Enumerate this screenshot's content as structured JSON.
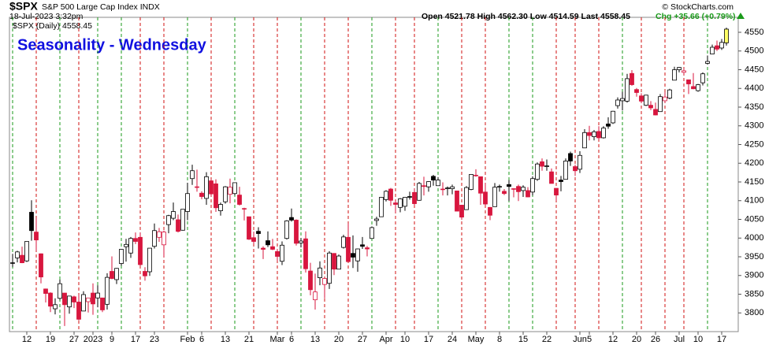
{
  "header": {
    "symbol": "$SPX",
    "name": "S&P 500 Large Cap Index INDX",
    "date": "18-Jul-2023 3:32pm",
    "legend": "$SPX (Daily) 4558.45",
    "quote": "Open 4521.78  High 4562.30  Low 4514.59  Last 4558.45",
    "change": "Chg +35.66 (+0.79%)",
    "credit": "© StockCharts.com"
  },
  "chart_data": {
    "type": "candlestick",
    "title": "Seasonality - Wednesday",
    "categories": [
      null,
      null,
      null,
      "12",
      null,
      null,
      null,
      null,
      "19",
      null,
      null,
      null,
      null,
      "27",
      null,
      null,
      null,
      "2023",
      null,
      null,
      null,
      "9",
      null,
      null,
      null,
      null,
      "17",
      null,
      null,
      null,
      "23",
      null,
      null,
      null,
      null,
      null,
      null,
      "Feb",
      null,
      null,
      "6",
      null,
      null,
      null,
      null,
      "13",
      null,
      null,
      null,
      null,
      "21",
      null,
      null,
      null,
      null,
      null,
      "Mar",
      null,
      null,
      "6",
      null,
      null,
      null,
      null,
      "13",
      null,
      null,
      null,
      null,
      "20",
      null,
      null,
      null,
      null,
      "27",
      null,
      null,
      null,
      null,
      "Apr",
      null,
      null,
      null,
      "10",
      null,
      null,
      null,
      null,
      "17",
      null,
      null,
      null,
      null,
      "24",
      null,
      null,
      null,
      null,
      "May",
      null,
      null,
      null,
      null,
      "8",
      null,
      null,
      null,
      null,
      "15",
      null,
      null,
      null,
      null,
      "22",
      null,
      null,
      null,
      null,
      null,
      null,
      "Jun",
      null,
      "5",
      null,
      null,
      null,
      null,
      "12",
      null,
      null,
      null,
      null,
      "20",
      null,
      null,
      null,
      "26",
      null,
      null,
      null,
      null,
      "Jul",
      null,
      null,
      null,
      "10",
      null,
      null,
      null,
      null,
      "17",
      null
    ],
    "ohlc": [
      [
        3934,
        3958,
        3923,
        3934
      ],
      [
        3947,
        3966,
        3935,
        3963
      ],
      [
        3954,
        3977,
        3933,
        3934
      ],
      [
        3939,
        3991,
        3936,
        3991
      ],
      [
        4069,
        4101,
        3993,
        4020
      ],
      [
        4016,
        4053,
        3966,
        3995
      ],
      [
        3958,
        3959,
        3879,
        3896
      ],
      [
        3864,
        3865,
        3828,
        3852
      ],
      [
        3853,
        3855,
        3802,
        3818
      ],
      [
        3811,
        3839,
        3796,
        3822
      ],
      [
        3839,
        3889,
        3835,
        3878
      ],
      [
        3853,
        3853,
        3765,
        3822
      ],
      [
        3816,
        3845,
        3798,
        3845
      ],
      [
        3843,
        3846,
        3813,
        3829
      ],
      [
        3829,
        3849,
        3780,
        3783
      ],
      [
        3805,
        3858,
        3805,
        3849
      ],
      [
        3830,
        3840,
        3801,
        3840
      ],
      [
        3853,
        3879,
        3795,
        3824
      ],
      [
        3840,
        3874,
        3815,
        3853
      ],
      [
        3840,
        3840,
        3802,
        3808
      ],
      [
        3823,
        3906,
        3809,
        3895
      ],
      [
        3911,
        3951,
        3890,
        3892
      ],
      [
        3889,
        3920,
        3877,
        3919
      ],
      [
        3932,
        3971,
        3926,
        3970
      ],
      [
        3977,
        3998,
        3937,
        3983
      ],
      [
        3960,
        4003,
        3947,
        3999
      ],
      [
        3999,
        4015,
        3984,
        3991
      ],
      [
        4002,
        4015,
        3926,
        3929
      ],
      [
        3911,
        3922,
        3886,
        3899
      ],
      [
        3910,
        3973,
        3899,
        3973
      ],
      [
        3978,
        4039,
        3972,
        4020
      ],
      [
        4002,
        4027,
        3990,
        4017
      ],
      [
        3982,
        4020,
        3949,
        4016
      ],
      [
        4036,
        4062,
        4013,
        4060
      ],
      [
        4053,
        4095,
        4048,
        4071
      ],
      [
        4049,
        4063,
        4015,
        4018
      ],
      [
        4021,
        4077,
        4020,
        4077
      ],
      [
        4071,
        4148,
        4048,
        4119
      ],
      [
        4159,
        4196,
        4142,
        4180
      ],
      [
        4137,
        4183,
        4124,
        4136
      ],
      [
        4120,
        4125,
        4104,
        4111
      ],
      [
        4106,
        4176,
        4089,
        4164
      ],
      [
        4153,
        4157,
        4111,
        4118
      ],
      [
        4145,
        4157,
        4070,
        4081
      ],
      [
        4073,
        4095,
        4060,
        4090
      ],
      [
        4097,
        4139,
        4092,
        4137
      ],
      [
        4117,
        4159,
        4093,
        4136
      ],
      [
        4119,
        4148,
        4114,
        4148
      ],
      [
        4115,
        4137,
        4087,
        4090
      ],
      [
        4078,
        4081,
        4047,
        4079
      ],
      [
        4057,
        4057,
        3995,
        3997
      ],
      [
        4001,
        4017,
        3984,
        3991
      ],
      [
        4018,
        4029,
        3972,
        4012
      ],
      [
        3973,
        3978,
        3944,
        3970
      ],
      [
        3993,
        4018,
        3976,
        3982
      ],
      [
        3977,
        3998,
        3968,
        3970
      ],
      [
        3964,
        3971,
        3939,
        3951
      ],
      [
        3938,
        3991,
        3928,
        3981
      ],
      [
        3999,
        4048,
        3996,
        4046
      ],
      [
        4055,
        4079,
        4044,
        4048
      ],
      [
        4048,
        4050,
        3980,
        3986
      ],
      [
        3987,
        4000,
        3975,
        3992
      ],
      [
        3998,
        4018,
        3908,
        3918
      ],
      [
        3912,
        3934,
        3847,
        3862
      ],
      [
        3835,
        3905,
        3809,
        3856
      ],
      [
        3894,
        3938,
        3874,
        3920
      ],
      [
        3876,
        3894,
        3839,
        3892
      ],
      [
        3879,
        3965,
        3864,
        3960
      ],
      [
        3959,
        3959,
        3901,
        3917
      ],
      [
        3917,
        3956,
        3917,
        3952
      ],
      [
        3975,
        4009,
        3972,
        4003
      ],
      [
        4002,
        4039,
        3937,
        3937
      ],
      [
        3959,
        4007,
        3920,
        3949
      ],
      [
        3939,
        3972,
        3910,
        3971
      ],
      [
        3982,
        4003,
        3971,
        3978
      ],
      [
        3974,
        3979,
        3951,
        3971
      ],
      [
        3999,
        4031,
        3999,
        4028
      ],
      [
        4047,
        4057,
        4033,
        4051
      ],
      [
        4057,
        4110,
        4057,
        4109
      ],
      [
        4103,
        4128,
        4098,
        4125
      ],
      [
        4131,
        4134,
        4086,
        4101
      ],
      [
        4094,
        4100,
        4068,
        4090
      ],
      [
        4082,
        4107,
        4069,
        4105
      ],
      [
        4085,
        4110,
        4073,
        4109
      ],
      [
        4111,
        4124,
        4103,
        4109
      ],
      [
        4122,
        4132,
        4087,
        4092
      ],
      [
        4101,
        4150,
        4100,
        4146
      ],
      [
        4140,
        4164,
        4114,
        4138
      ],
      [
        4137,
        4152,
        4124,
        4151
      ],
      [
        4165,
        4169,
        4140,
        4155
      ],
      [
        4140,
        4163,
        4140,
        4155
      ],
      [
        4131,
        4149,
        4114,
        4130
      ],
      [
        4132,
        4138,
        4114,
        4134
      ],
      [
        4132,
        4143,
        4117,
        4137
      ],
      [
        4126,
        4126,
        4072,
        4072
      ],
      [
        4088,
        4089,
        4049,
        4056
      ],
      [
        4076,
        4139,
        4076,
        4135
      ],
      [
        4130,
        4170,
        4128,
        4170
      ],
      [
        4167,
        4184,
        4164,
        4168
      ],
      [
        4164,
        4164,
        4089,
        4120
      ],
      [
        4123,
        4148,
        4088,
        4091
      ],
      [
        4082,
        4083,
        4048,
        4061
      ],
      [
        4084,
        4147,
        4084,
        4136
      ],
      [
        4136,
        4143,
        4124,
        4138
      ],
      [
        4125,
        4131,
        4115,
        4119
      ],
      [
        4143,
        4155,
        4099,
        4138
      ],
      [
        4132,
        4133,
        4109,
        4131
      ],
      [
        4138,
        4143,
        4099,
        4124
      ],
      [
        4127,
        4141,
        4110,
        4136
      ],
      [
        4127,
        4136,
        4109,
        4110
      ],
      [
        4123,
        4165,
        4114,
        4159
      ],
      [
        4157,
        4202,
        4153,
        4198
      ],
      [
        4204,
        4213,
        4180,
        4192
      ],
      [
        4191,
        4210,
        4180,
        4193
      ],
      [
        4177,
        4186,
        4146,
        4146
      ],
      [
        4133,
        4133,
        4100,
        4115
      ],
      [
        4155,
        4166,
        4125,
        4151
      ],
      [
        4157,
        4213,
        4157,
        4206
      ],
      [
        4226,
        4231,
        4193,
        4206
      ],
      [
        4191,
        4196,
        4166,
        4180
      ],
      [
        4184,
        4232,
        4174,
        4221
      ],
      [
        4241,
        4291,
        4241,
        4282
      ],
      [
        4282,
        4300,
        4261,
        4274
      ],
      [
        4271,
        4289,
        4261,
        4284
      ],
      [
        4285,
        4299,
        4264,
        4268
      ],
      [
        4268,
        4299,
        4266,
        4294
      ],
      [
        4305,
        4323,
        4292,
        4299
      ],
      [
        4308,
        4340,
        4305,
        4339
      ],
      [
        4354,
        4376,
        4346,
        4369
      ],
      [
        4367,
        4391,
        4341,
        4373
      ],
      [
        4366,
        4439,
        4362,
        4426
      ],
      [
        4440,
        4449,
        4407,
        4410
      ],
      [
        4397,
        4401,
        4378,
        4389
      ],
      [
        4380,
        4387,
        4361,
        4366
      ],
      [
        4355,
        4383,
        4353,
        4382
      ],
      [
        4355,
        4366,
        4342,
        4348
      ],
      [
        4344,
        4362,
        4328,
        4329
      ],
      [
        4338,
        4385,
        4338,
        4378
      ],
      [
        4367,
        4390,
        4361,
        4377
      ],
      [
        4374,
        4399,
        4371,
        4396
      ],
      [
        4422,
        4458,
        4422,
        4450
      ],
      [
        4450,
        4457,
        4443,
        4456
      ],
      [
        4443,
        4454,
        4437,
        4447
      ],
      [
        4423,
        4423,
        4385,
        4412
      ],
      [
        4405,
        4441,
        4398,
        4399
      ],
      [
        4394,
        4412,
        4391,
        4410
      ],
      [
        4415,
        4443,
        4408,
        4439
      ],
      [
        4467,
        4488,
        4464,
        4472
      ],
      [
        4492,
        4517,
        4491,
        4510
      ],
      [
        4514,
        4528,
        4500,
        4505
      ],
      [
        4508,
        4532,
        4503,
        4523
      ],
      [
        4521.78,
        4562.3,
        4514.59,
        4558.45
      ]
    ],
    "wednesday_lines": [
      0,
      5,
      10,
      14,
      18,
      23,
      27,
      32,
      37,
      42,
      47,
      51,
      56,
      61,
      66,
      71,
      76,
      81,
      85,
      90,
      95,
      100,
      105,
      110,
      115,
      119,
      124,
      129,
      133,
      138,
      142,
      147
    ],
    "up_color": "#000000",
    "down_color": "#d8163e",
    "highlight_color": "#ffff66",
    "line_up_color": "#1a9a1a",
    "line_down_color": "#d01010",
    "ylim": [
      3750,
      4590
    ],
    "yticks": [
      3800,
      3850,
      3900,
      3950,
      4000,
      4050,
      4100,
      4150,
      4200,
      4250,
      4300,
      4350,
      4400,
      4450,
      4500,
      4550
    ],
    "grid": false
  }
}
